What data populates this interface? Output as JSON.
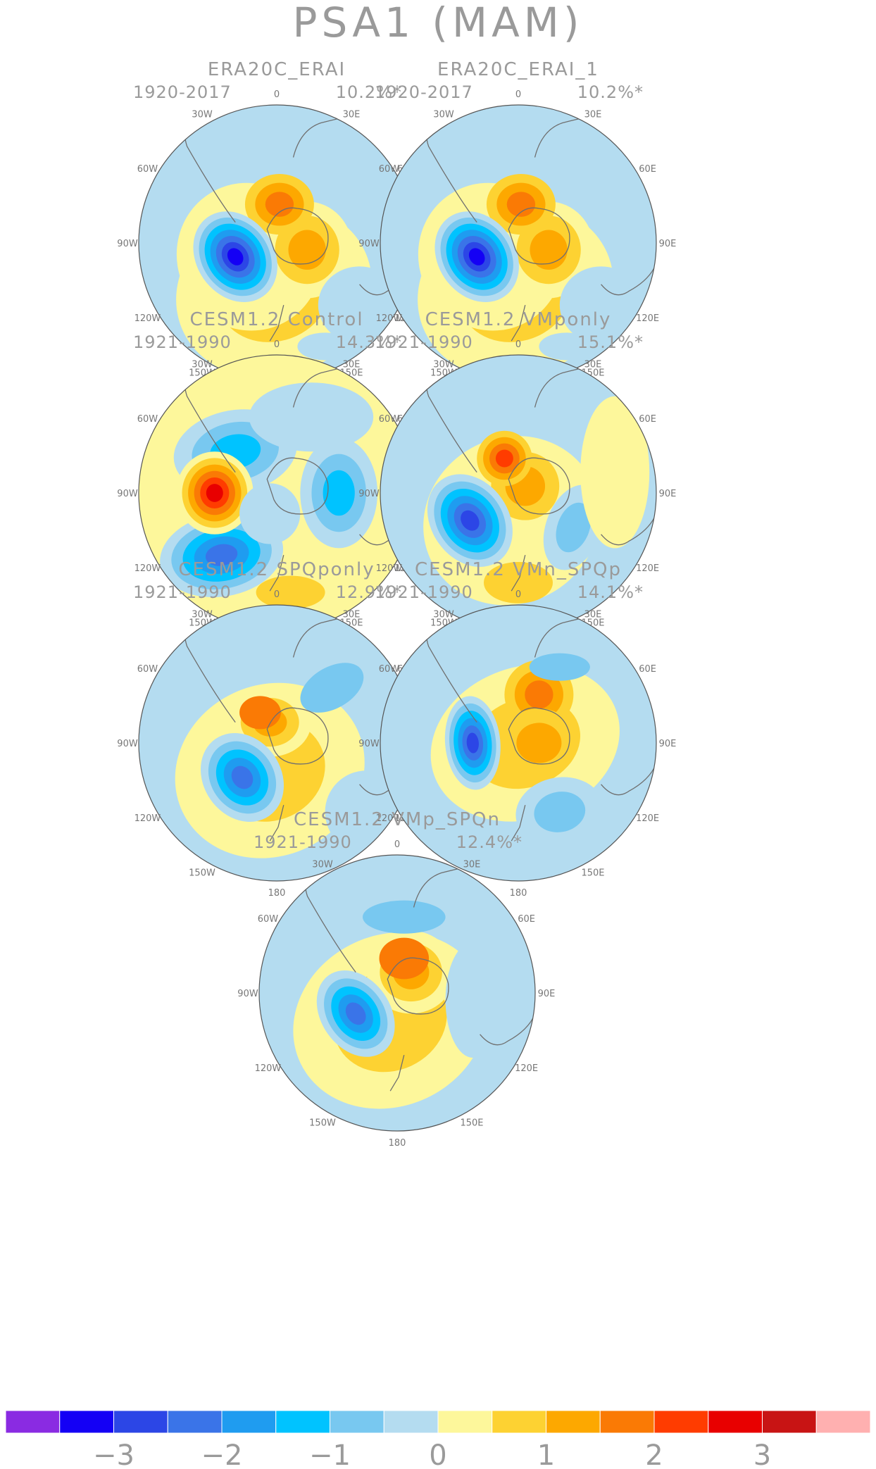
{
  "figure": {
    "title": "PSA1 (MAM)"
  },
  "longitude_labels": [
    "0",
    "30E",
    "60E",
    "90E",
    "120E",
    "150E",
    "180",
    "150W",
    "120W",
    "90W",
    "60W",
    "30W"
  ],
  "panels": [
    {
      "title": "ERA20C_ERAI",
      "period": "1920-2017",
      "variance": "10.2%*",
      "pattern": "era"
    },
    {
      "title": "ERA20C_ERAI_1",
      "period": "1920-2017",
      "variance": "10.2%*",
      "pattern": "era"
    },
    {
      "title": "CESM1.2 Control",
      "period": "1921-1990",
      "variance": "14.3%*",
      "pattern": "control"
    },
    {
      "title": "CESM1.2 VMponly",
      "period": "1921-1990",
      "variance": "15.1%*",
      "pattern": "vmp"
    },
    {
      "title": "CESM1.2 SPQponly",
      "period": "1921-1990",
      "variance": "12.9%*",
      "pattern": "spqp"
    },
    {
      "title": "CESM1.2 VMn_SPQp",
      "period": "1921-1990",
      "variance": "14.1%*",
      "pattern": "vmn"
    },
    {
      "title": "CESM1.2 VMp_SPQn",
      "period": "1921-1990",
      "variance": "12.4%*",
      "pattern": "vmpspqn"
    }
  ],
  "colorbar": {
    "colors": [
      "#8a2be2",
      "#1400f5",
      "#2c46e6",
      "#3a74e8",
      "#1f9cf0",
      "#00c3ff",
      "#78c8f0",
      "#b4dcf0",
      "#fdf79b",
      "#fdd232",
      "#fda800",
      "#fa7a05",
      "#ff3c00",
      "#e80000",
      "#c81414",
      "#ffb0b0"
    ],
    "tick_labels": [
      "-3",
      "-2",
      "-1",
      "0",
      "1",
      "2",
      "3"
    ]
  }
}
